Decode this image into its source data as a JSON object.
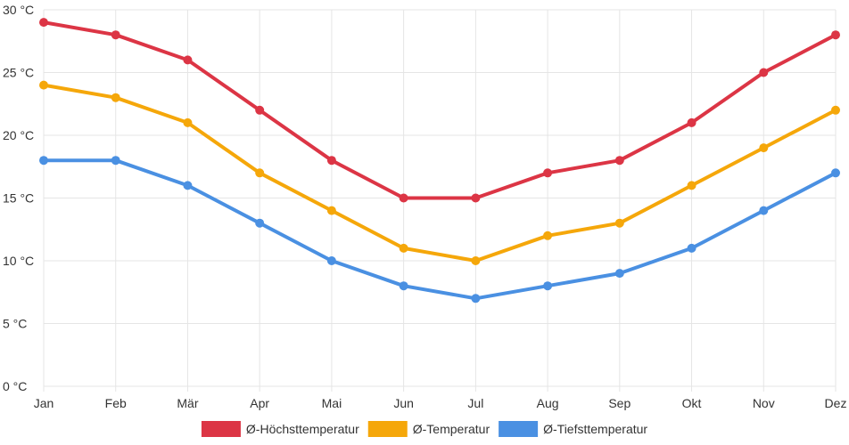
{
  "chart_data": {
    "type": "line",
    "categories": [
      "Jan",
      "Feb",
      "Mär",
      "Apr",
      "Mai",
      "Jun",
      "Jul",
      "Aug",
      "Sep",
      "Okt",
      "Nov",
      "Dez"
    ],
    "y_unit": "°C",
    "ylim": [
      0,
      30
    ],
    "y_ticks": [
      0,
      5,
      10,
      15,
      20,
      25,
      30
    ],
    "y_tick_labels": [
      "0 °C",
      "5 °C",
      "10 °C",
      "15 °C",
      "20 °C",
      "25 °C",
      "30 °C"
    ],
    "grid": true,
    "legend_position": "bottom",
    "series": [
      {
        "key": "max",
        "name": "Ø-Höchsttemperatur",
        "color": "#dc3545",
        "values": [
          29,
          28,
          26,
          22,
          18,
          15,
          15,
          17,
          18,
          21,
          25,
          28
        ]
      },
      {
        "key": "avg",
        "name": "Ø-Temperatur",
        "color": "#f5a70a",
        "values": [
          24,
          23,
          21,
          17,
          14,
          11,
          10,
          12,
          13,
          16,
          19,
          22
        ]
      },
      {
        "key": "min",
        "name": "Ø-Tiefsttemperatur",
        "color": "#4a90e2",
        "values": [
          18,
          18,
          16,
          13,
          10,
          8,
          7,
          8,
          9,
          11,
          14,
          17
        ]
      }
    ]
  }
}
